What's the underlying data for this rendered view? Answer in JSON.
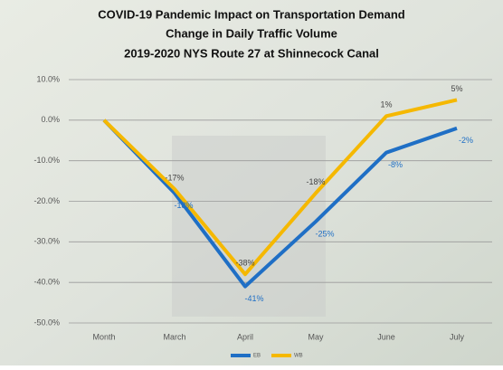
{
  "chart_data": {
    "type": "line",
    "title": "COVID-19 Pandemic Impact on Transportation Demand",
    "subtitle": [
      "Change in Daily Traffic Volume",
      "2019-2020 NYS Route 27 at Shinnecock Canal"
    ],
    "categories": [
      "Month",
      "March",
      "April",
      "May",
      "June",
      "July"
    ],
    "series": [
      {
        "name": "EB",
        "color": "#1f6fc5",
        "values": [
          0,
          -18,
          -41,
          -25,
          -8,
          -2
        ],
        "value_labels": [
          null,
          "-18%",
          "-41%",
          "-25%",
          "-8%",
          "-2%"
        ]
      },
      {
        "name": "WB",
        "color": "#f5b800",
        "values": [
          0,
          -17,
          -38,
          -18,
          1,
          5
        ],
        "value_labels": [
          null,
          "-17%",
          "-38%",
          "-18%",
          "1%",
          "5%"
        ]
      }
    ],
    "ylim": [
      -50,
      10
    ],
    "yticks": [
      {
        "value": -50,
        "label": "-50.0%"
      },
      {
        "value": -40,
        "label": "-40.0%"
      },
      {
        "value": -30,
        "label": "-30.0%"
      },
      {
        "value": -20,
        "label": "-20.0%"
      },
      {
        "value": -10,
        "label": "-10.0%"
      },
      {
        "value": 0,
        "label": "0.0%"
      },
      {
        "value": 10,
        "label": "10.0%"
      }
    ],
    "grid": true,
    "legend": "bottom"
  }
}
